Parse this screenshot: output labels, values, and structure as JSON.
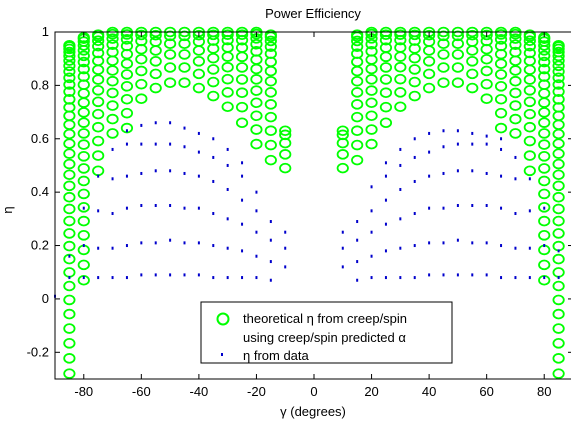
{
  "chart_data": {
    "type": "scatter",
    "title": "Power Efficiency",
    "xlabel": "γ (degrees)",
    "ylabel": "η",
    "xlim": [
      -90,
      90
    ],
    "ylim": [
      -0.3,
      1.0
    ],
    "xticks": [
      -80,
      -60,
      -40,
      -20,
      0,
      20,
      40,
      60,
      80
    ],
    "yticks": [
      -0.2,
      0,
      0.2,
      0.4,
      0.6,
      0.8,
      1
    ],
    "ytick_labels": [
      "-0.2",
      "0",
      "0.2",
      "0.4",
      "0.6",
      "0.8",
      "1"
    ],
    "legend": {
      "position": "bottom-center",
      "entries": [
        {
          "label_line1": "theoretical η from creep/spin",
          "label_line2": "using creep/spin predicted α",
          "marker": "circle",
          "color": "#00ff00"
        },
        {
          "label_line1": "η from data",
          "marker": "dot",
          "color": "#0000cc"
        }
      ]
    },
    "series": [
      {
        "name": "theoretical η from creep/spin using creep/spin predicted α",
        "marker": "circle",
        "color": "#00ff00",
        "columns": [
          {
            "x": -85,
            "y_min": -0.28,
            "y_max": 0.95
          },
          {
            "x": -80,
            "y_min": 0.07,
            "y_max": 0.98
          },
          {
            "x": -75,
            "y_min": 0.48,
            "y_max": 0.99
          },
          {
            "x": -70,
            "y_min": 0.62,
            "y_max": 1.0
          },
          {
            "x": -65,
            "y_min": 0.64,
            "y_max": 1.0
          },
          {
            "x": -60,
            "y_min": 0.75,
            "y_max": 1.0
          },
          {
            "x": -55,
            "y_min": 0.79,
            "y_max": 1.0
          },
          {
            "x": -50,
            "y_min": 0.81,
            "y_max": 1.0
          },
          {
            "x": -45,
            "y_min": 0.81,
            "y_max": 1.0
          },
          {
            "x": -40,
            "y_min": 0.79,
            "y_max": 1.0
          },
          {
            "x": -35,
            "y_min": 0.76,
            "y_max": 1.0
          },
          {
            "x": -30,
            "y_min": 0.72,
            "y_max": 1.0
          },
          {
            "x": -25,
            "y_min": 0.66,
            "y_max": 1.0
          },
          {
            "x": -20,
            "y_min": 0.58,
            "y_max": 1.0
          },
          {
            "x": -15,
            "y_min": 0.52,
            "y_max": 0.99
          },
          {
            "x": -10,
            "y_min": 0.49,
            "y_max": 0.63
          },
          {
            "x": 10,
            "y_min": 0.49,
            "y_max": 0.63
          },
          {
            "x": 15,
            "y_min": 0.52,
            "y_max": 0.99
          },
          {
            "x": 20,
            "y_min": 0.58,
            "y_max": 1.0
          },
          {
            "x": 25,
            "y_min": 0.66,
            "y_max": 1.0
          },
          {
            "x": 30,
            "y_min": 0.72,
            "y_max": 1.0
          },
          {
            "x": 35,
            "y_min": 0.76,
            "y_max": 1.0
          },
          {
            "x": 40,
            "y_min": 0.79,
            "y_max": 1.0
          },
          {
            "x": 45,
            "y_min": 0.81,
            "y_max": 1.0
          },
          {
            "x": 50,
            "y_min": 0.81,
            "y_max": 1.0
          },
          {
            "x": 55,
            "y_min": 0.79,
            "y_max": 1.0
          },
          {
            "x": 60,
            "y_min": 0.75,
            "y_max": 1.0
          },
          {
            "x": 65,
            "y_min": 0.64,
            "y_max": 1.0
          },
          {
            "x": 70,
            "y_min": 0.62,
            "y_max": 1.0
          },
          {
            "x": 75,
            "y_min": 0.48,
            "y_max": 0.99
          },
          {
            "x": 80,
            "y_min": 0.07,
            "y_max": 0.98
          },
          {
            "x": 85,
            "y_min": -0.28,
            "y_max": 0.95
          }
        ]
      },
      {
        "name": "η from data",
        "marker": "dot",
        "color": "#0000cc",
        "columns": [
          {
            "x": -90,
            "y_values": [
              0.01
            ]
          },
          {
            "x": -85,
            "y_values": [
              0.08,
              0.16
            ]
          },
          {
            "x": -80,
            "y_values": [
              0.08,
              0.2,
              0.34
            ]
          },
          {
            "x": -75,
            "y_values": [
              0.08,
              0.19,
              0.33,
              0.46
            ]
          },
          {
            "x": -70,
            "y_values": [
              0.08,
              0.19,
              0.32,
              0.45,
              0.56
            ]
          },
          {
            "x": -65,
            "y_values": [
              0.08,
              0.2,
              0.34,
              0.46,
              0.58,
              0.63
            ]
          },
          {
            "x": -60,
            "y_values": [
              0.09,
              0.21,
              0.35,
              0.47,
              0.58,
              0.65
            ]
          },
          {
            "x": -55,
            "y_values": [
              0.09,
              0.21,
              0.35,
              0.48,
              0.58,
              0.66
            ]
          },
          {
            "x": -50,
            "y_values": [
              0.09,
              0.22,
              0.35,
              0.48,
              0.58,
              0.66
            ]
          },
          {
            "x": -45,
            "y_values": [
              0.09,
              0.21,
              0.34,
              0.47,
              0.57,
              0.64
            ]
          },
          {
            "x": -40,
            "y_values": [
              0.09,
              0.21,
              0.34,
              0.46,
              0.55,
              0.62
            ]
          },
          {
            "x": -35,
            "y_values": [
              0.08,
              0.2,
              0.32,
              0.44,
              0.53,
              0.6
            ]
          },
          {
            "x": -30,
            "y_values": [
              0.08,
              0.19,
              0.3,
              0.41,
              0.5,
              0.56
            ]
          },
          {
            "x": -25,
            "y_values": [
              0.08,
              0.18,
              0.28,
              0.37,
              0.46,
              0.51
            ]
          },
          {
            "x": -20,
            "y_values": [
              0.08,
              0.16,
              0.25,
              0.33,
              0.4
            ]
          },
          {
            "x": -15,
            "y_values": [
              0.07,
              0.14,
              0.22,
              0.29
            ]
          },
          {
            "x": -10,
            "y_values": [
              0.12,
              0.19,
              0.25
            ]
          },
          {
            "x": 10,
            "y_values": [
              0.12,
              0.19,
              0.25
            ]
          },
          {
            "x": 15,
            "y_values": [
              0.07,
              0.14,
              0.22,
              0.29
            ]
          },
          {
            "x": 20,
            "y_values": [
              0.08,
              0.16,
              0.25,
              0.33,
              0.42
            ]
          },
          {
            "x": 25,
            "y_values": [
              0.08,
              0.18,
              0.28,
              0.37,
              0.46,
              0.51
            ]
          },
          {
            "x": 30,
            "y_values": [
              0.08,
              0.19,
              0.3,
              0.41,
              0.5,
              0.56
            ]
          },
          {
            "x": 35,
            "y_values": [
              0.08,
              0.2,
              0.32,
              0.44,
              0.53,
              0.6
            ]
          },
          {
            "x": 40,
            "y_values": [
              0.09,
              0.21,
              0.34,
              0.46,
              0.55,
              0.62
            ]
          },
          {
            "x": 45,
            "y_values": [
              0.09,
              0.21,
              0.34,
              0.47,
              0.57,
              0.63
            ]
          },
          {
            "x": 50,
            "y_values": [
              0.09,
              0.22,
              0.35,
              0.48,
              0.58,
              0.63
            ]
          },
          {
            "x": 55,
            "y_values": [
              0.09,
              0.21,
              0.35,
              0.48,
              0.58,
              0.62
            ]
          },
          {
            "x": 60,
            "y_values": [
              0.09,
              0.21,
              0.35,
              0.47,
              0.58,
              0.61
            ]
          },
          {
            "x": 65,
            "y_values": [
              0.08,
              0.2,
              0.34,
              0.46,
              0.56,
              0.6
            ]
          },
          {
            "x": 70,
            "y_values": [
              0.08,
              0.19,
              0.32,
              0.45,
              0.53
            ]
          },
          {
            "x": 75,
            "y_values": [
              0.08,
              0.19,
              0.33,
              0.45
            ]
          },
          {
            "x": 80,
            "y_values": [
              0.08,
              0.2,
              0.34
            ]
          },
          {
            "x": 85,
            "y_values": [
              0.08,
              0.18
            ]
          }
        ]
      }
    ]
  }
}
